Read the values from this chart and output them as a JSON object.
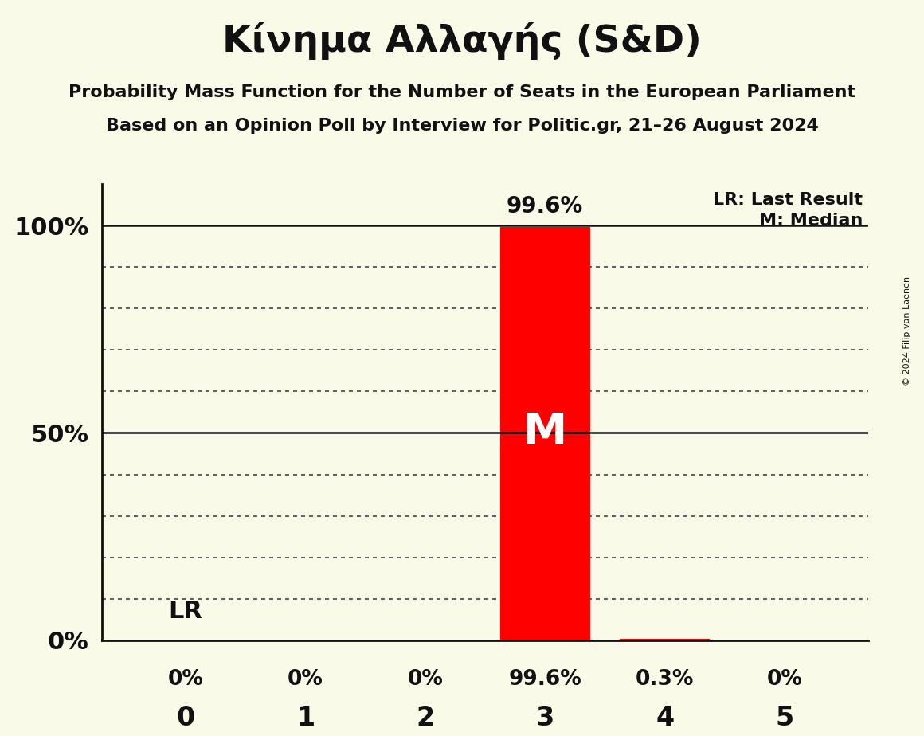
{
  "title": "Κίνημα Αλλαγής (S&D)",
  "subtitle1": "Probability Mass Function for the Number of Seats in the European Parliament",
  "subtitle2": "Based on an Opinion Poll by Interview for Politic.gr, 21–26 August 2024",
  "copyright": "© 2024 Filip van Laenen",
  "categories": [
    0,
    1,
    2,
    3,
    4,
    5
  ],
  "probabilities": [
    0.0,
    0.0,
    0.0,
    99.6,
    0.3,
    0.0
  ],
  "prob_labels": [
    "0%",
    "0%",
    "0%",
    "99.6%",
    "0.3%",
    "0%"
  ],
  "bar_color": "#FF0000",
  "median": 3,
  "last_result": 3,
  "background_color": "#FAFAE8",
  "text_color": "#111111",
  "ylim": [
    0,
    110
  ],
  "yticks": [
    0,
    50,
    100
  ],
  "ytick_labels": [
    "0%",
    "50%",
    "100%"
  ],
  "legend_lr": "LR: Last Result",
  "legend_m": "M: Median",
  "annotation_lr": "LR",
  "annotation_m": "M",
  "grid_color": "#444444",
  "dotted_lines": [
    10,
    20,
    30,
    40,
    60,
    70,
    80,
    90
  ],
  "solid_lines": [
    0,
    50,
    100
  ]
}
